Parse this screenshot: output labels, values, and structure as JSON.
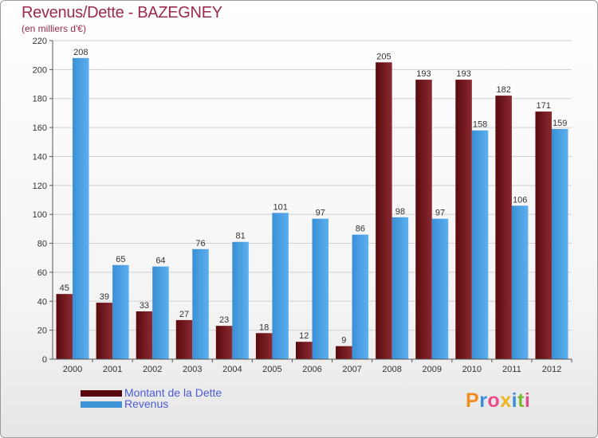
{
  "title": "Revenus/Dette - BAZEGNEY",
  "subtitle": "(en milliers d'€)",
  "brand": {
    "letters": [
      {
        "ch": "P",
        "color": "#f08c1e"
      },
      {
        "ch": "r",
        "color": "#3a8ed6"
      },
      {
        "ch": "o",
        "color": "#e84c8b"
      },
      {
        "ch": "x",
        "color": "#f0b51e"
      },
      {
        "ch": "i",
        "color": "#3a8ed6"
      },
      {
        "ch": "t",
        "color": "#7ab82e"
      },
      {
        "ch": "i",
        "color": "#e84c8b"
      }
    ]
  },
  "colors": {
    "debt": "#7a1e22",
    "revenue": "#4da6e8",
    "title": "#9a2a4a",
    "legend_text": "#4a5bd6"
  },
  "chart_data": {
    "type": "bar",
    "categories": [
      "2000",
      "2001",
      "2002",
      "2003",
      "2004",
      "2005",
      "2006",
      "2007",
      "2008",
      "2009",
      "2010",
      "2011",
      "2012"
    ],
    "series": [
      {
        "name": "Montant de la Dette",
        "values": [
          45,
          39,
          33,
          27,
          23,
          18,
          12,
          9,
          205,
          193,
          193,
          182,
          171
        ]
      },
      {
        "name": "Revenus",
        "values": [
          208,
          65,
          64,
          76,
          81,
          101,
          97,
          86,
          98,
          97,
          158,
          106,
          159
        ]
      }
    ],
    "title": "Revenus/Dette - BAZEGNEY",
    "ylabel": "(en milliers d'€)",
    "ylim": [
      0,
      220
    ],
    "yticks": [
      0,
      20,
      40,
      60,
      80,
      100,
      120,
      140,
      160,
      180,
      200,
      220
    ],
    "grid": true,
    "legend": "bottom-left"
  }
}
